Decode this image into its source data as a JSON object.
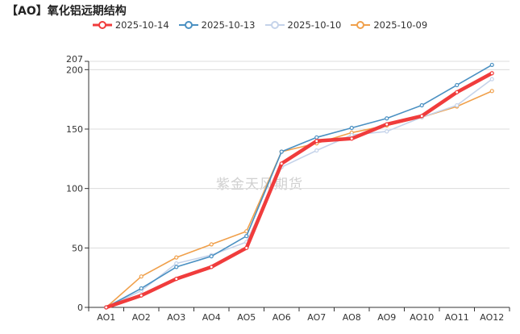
{
  "title": "【AO】氧化铝远期结构",
  "watermark": "紫金天风期货",
  "chart_data": {
    "type": "line",
    "categories": [
      "AO1",
      "AO2",
      "AO3",
      "AO4",
      "AO5",
      "AO6",
      "AO7",
      "AO8",
      "AO9",
      "AO10",
      "AO11",
      "AO12"
    ],
    "ylim": [
      0,
      207
    ],
    "yticks": [
      0,
      50,
      100,
      150,
      200,
      207
    ],
    "grid": true,
    "legend_position": "top-center",
    "series": [
      {
        "name": "2025-10-14",
        "color": "#f03c3c",
        "width": 4.5,
        "values": [
          0,
          10,
          24,
          34,
          50,
          121,
          140,
          142,
          154,
          161,
          181,
          197
        ]
      },
      {
        "name": "2025-10-13",
        "color": "#4a90c2",
        "width": 1.6,
        "values": [
          0,
          16,
          34,
          43,
          60,
          131,
          143,
          151,
          159,
          170,
          187,
          204
        ]
      },
      {
        "name": "2025-10-10",
        "color": "#c5d3ea",
        "width": 1.6,
        "values": [
          0,
          14,
          37,
          44,
          55,
          118,
          132,
          145,
          148,
          160,
          170,
          192
        ]
      },
      {
        "name": "2025-10-09",
        "color": "#f0a04b",
        "width": 1.6,
        "values": [
          0,
          26,
          42,
          53,
          64,
          131,
          138,
          147,
          153,
          160,
          169,
          182
        ]
      }
    ]
  }
}
